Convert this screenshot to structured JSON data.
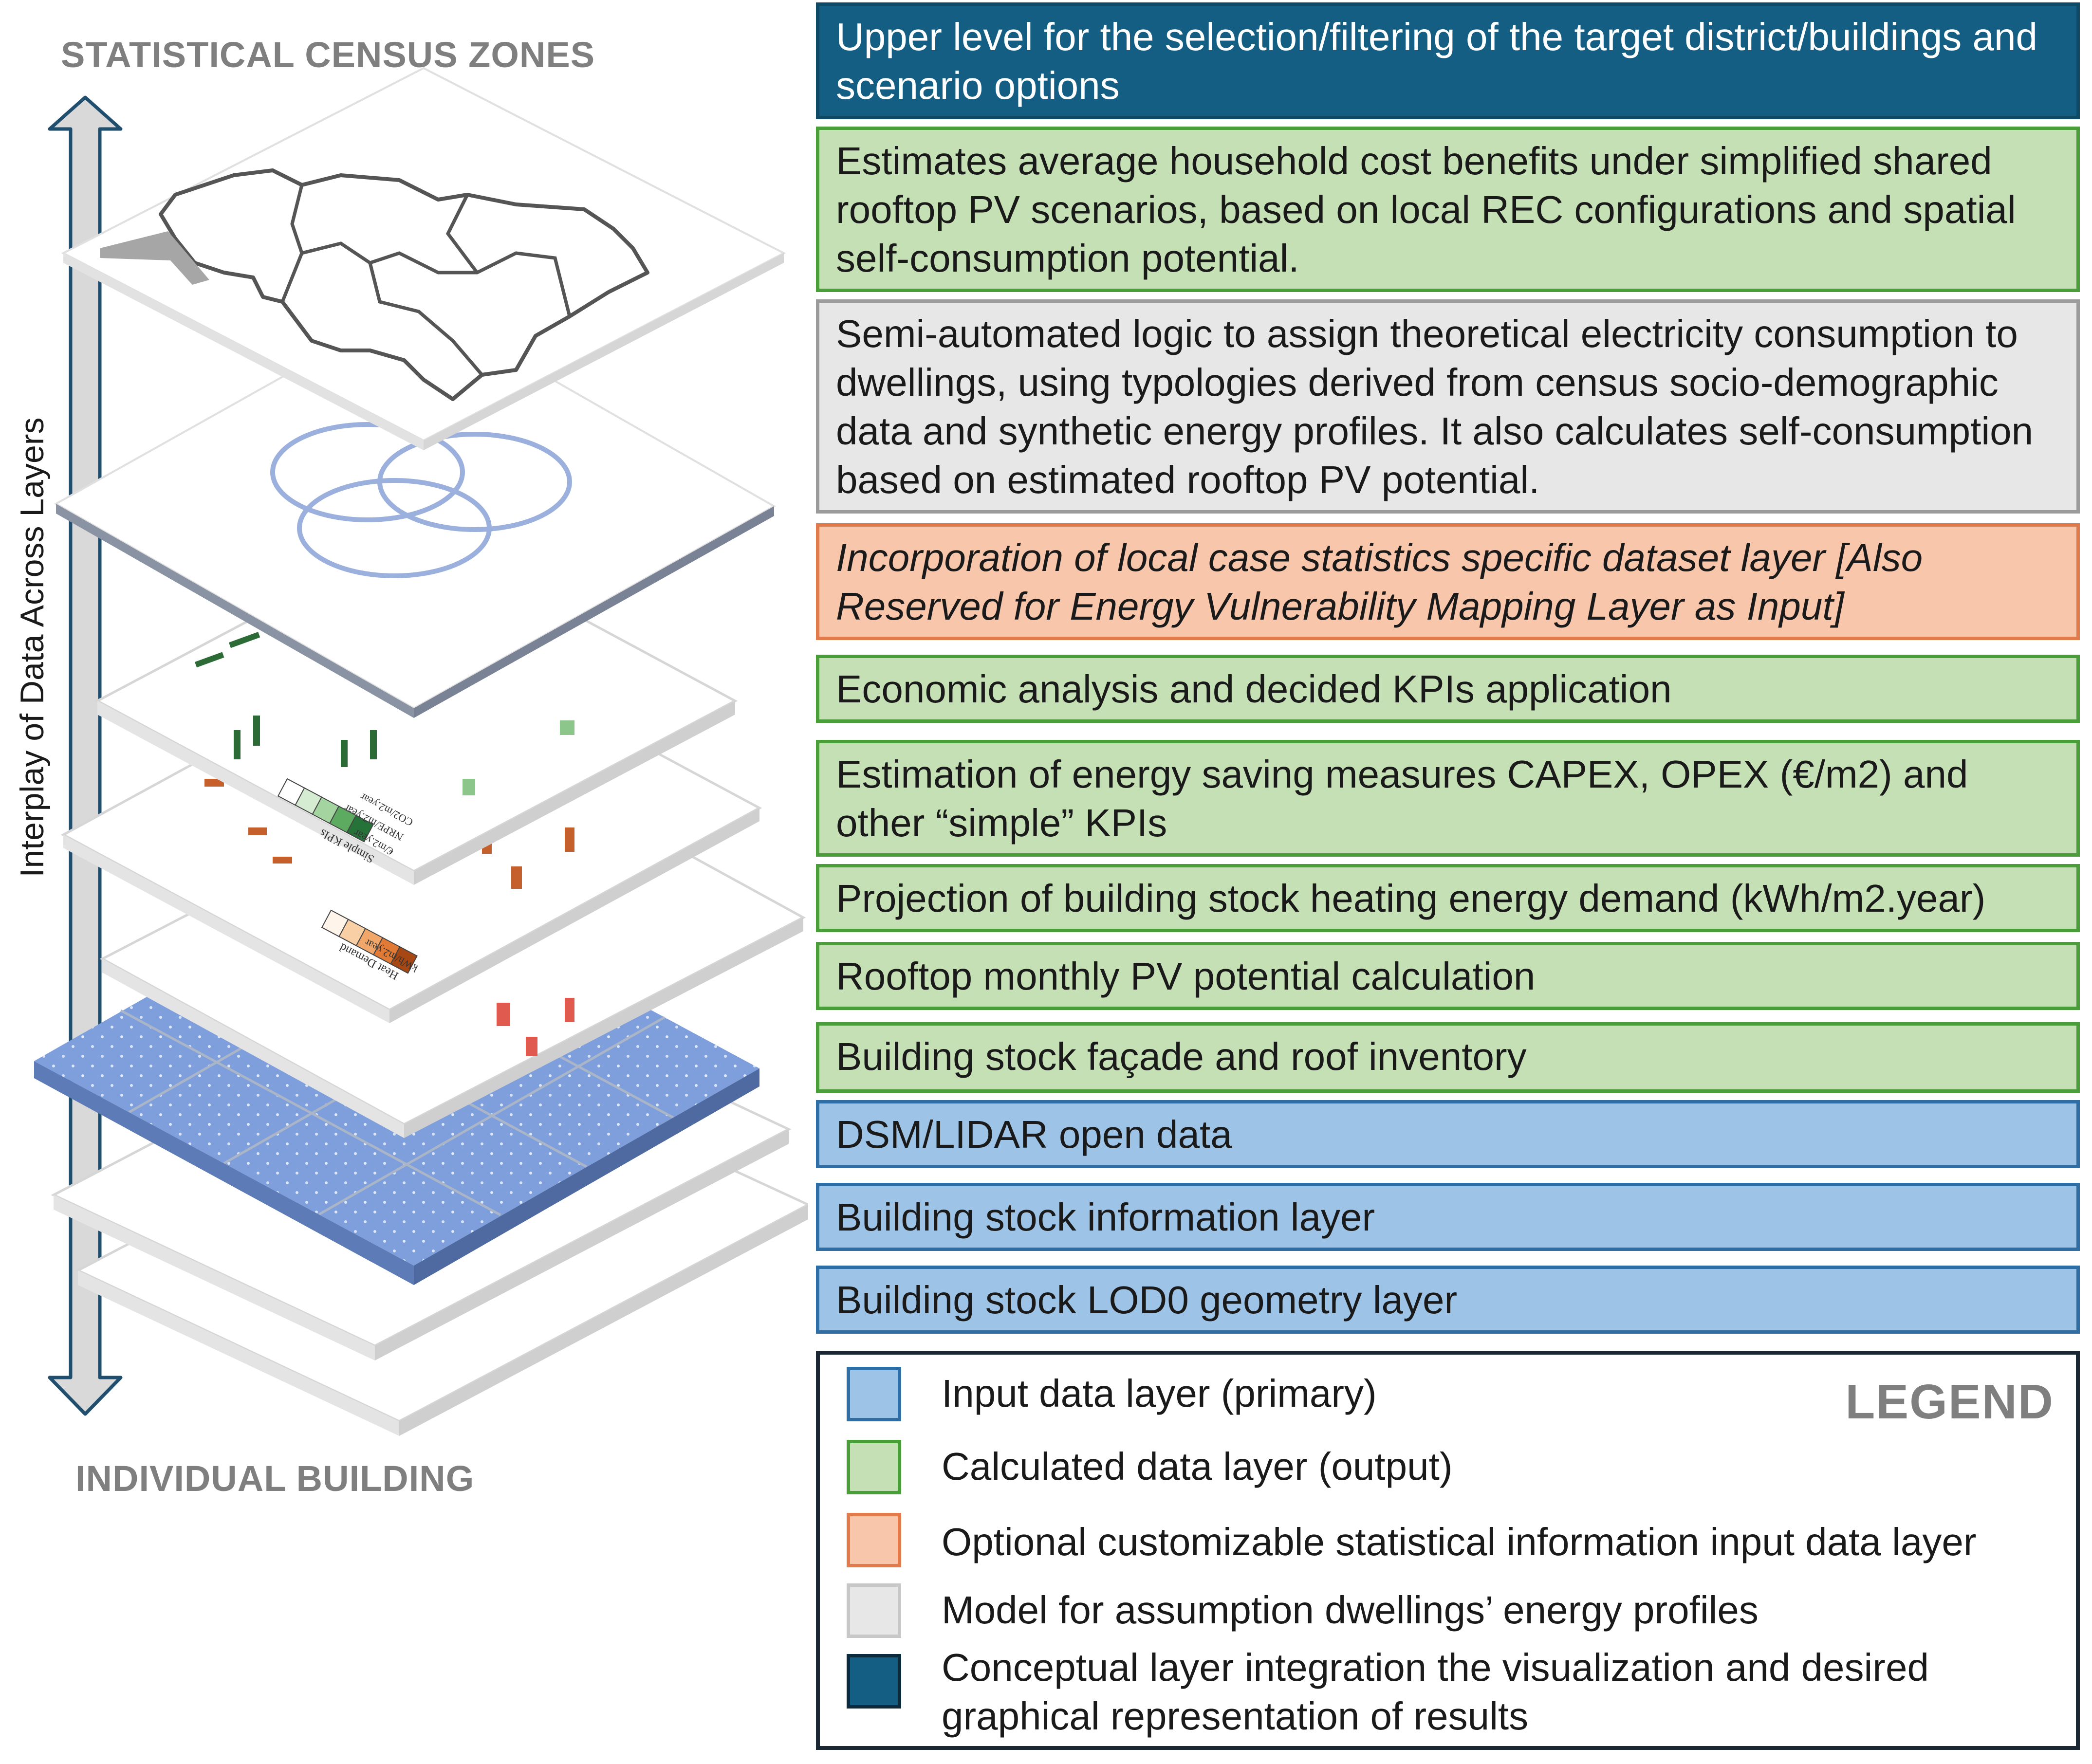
{
  "stack": {
    "top_label": "STATISTICAL CENSUS ZONES",
    "bottom_label": "INDIVIDUAL BUILDING",
    "axis_label": "Interplay of Data Across Layers",
    "map_legend_1": {
      "title": "Simple KPIs",
      "lines": [
        "€/m2.year",
        "NRPE/m2.year",
        "CO2/m2.year"
      ]
    },
    "map_legend_2": {
      "title": "Heat Demand",
      "lines": [
        "kWh/m2.year"
      ]
    }
  },
  "layers": [
    {
      "category": "conceptual",
      "text": "Upper level for the selection/filtering of the target district/buildings and scenario options"
    },
    {
      "category": "calculated",
      "text": "Estimates average household cost benefits under simplified shared rooftop PV scenarios, based on local REC configurations and spatial self-consumption potential."
    },
    {
      "category": "model",
      "text": "Semi-automated logic to assign theoretical electricity consumption to dwellings, using typologies derived from census socio-demographic data and synthetic energy profiles. It also calculates self-consumption based on estimated rooftop PV potential."
    },
    {
      "category": "optional",
      "text": "Incorporation of local case statistics specific dataset layer [Also Reserved for Energy Vulnerability Mapping Layer as Input]"
    },
    {
      "category": "calculated",
      "text": "Economic analysis and decided KPIs application"
    },
    {
      "category": "calculated",
      "text": "Estimation of energy saving measures CAPEX, OPEX (€/m2) and other “simple” KPIs"
    },
    {
      "category": "calculated",
      "text": "Projection of building stock heating energy demand (kWh/m2.year)"
    },
    {
      "category": "calculated",
      "text": "Rooftop monthly PV potential calculation"
    },
    {
      "category": "calculated",
      "text": "Building stock façade and roof inventory"
    },
    {
      "category": "input",
      "text": "DSM/LIDAR open data"
    },
    {
      "category": "input",
      "text": "Building stock information layer"
    },
    {
      "category": "input",
      "text": "Building stock LOD0 geometry layer"
    }
  ],
  "legend": {
    "title": "LEGEND",
    "items": [
      {
        "label": "Input data layer (primary)",
        "fill": "#9dc3e6",
        "border": "#2f6ea4"
      },
      {
        "label": "Calculated data layer (output)",
        "fill": "#c5e0b4",
        "border": "#4a9e39"
      },
      {
        "label": "Optional customizable statistical information input data layer",
        "fill": "#f7c6ab",
        "border": "#e27b4b"
      },
      {
        "label": "Model for assumption dwellings’ energy profiles",
        "fill": "#e7e7e7",
        "border": "#9b9b9b"
      },
      {
        "label": "Conceptual layer integration the visualization and desired graphical representation of results",
        "fill": "#135e82",
        "border": "#0e4a66"
      }
    ]
  }
}
